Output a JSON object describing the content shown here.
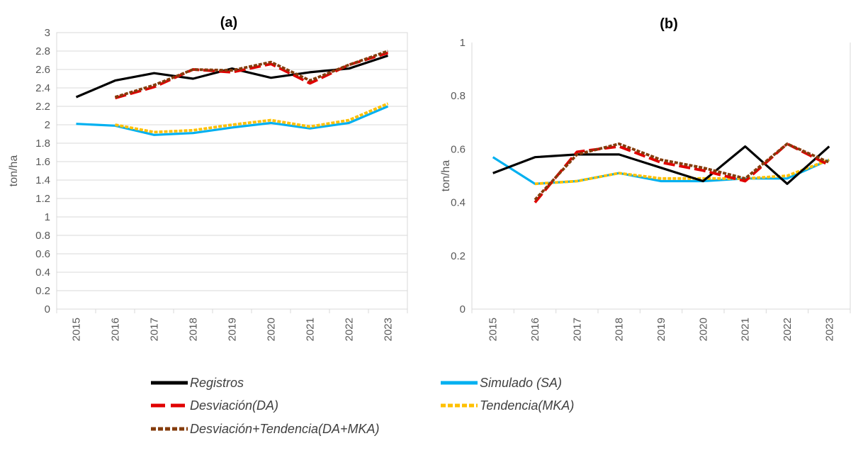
{
  "chart_data": [
    {
      "type": "line",
      "title": "(a)",
      "ylabel": "ton/ha",
      "xlabel": "",
      "categories": [
        "2015",
        "2016",
        "2017",
        "2018",
        "2019",
        "2020",
        "2021",
        "2022",
        "2023"
      ],
      "ylim": [
        0,
        3
      ],
      "yticks": [
        "0",
        "0.2",
        "0.4",
        "0.6",
        "0.8",
        "1",
        "1.2",
        "1.4",
        "1.6",
        "1.8",
        "2",
        "2.2",
        "2.4",
        "2.6",
        "2.8",
        "3"
      ],
      "grid": true,
      "series": [
        {
          "key": "registros",
          "values": [
            2.3,
            2.48,
            2.56,
            2.5,
            2.61,
            2.51,
            2.57,
            2.61,
            2.75
          ]
        },
        {
          "key": "simulado",
          "values": [
            2.01,
            1.99,
            1.89,
            1.91,
            1.97,
            2.02,
            1.96,
            2.02,
            2.2
          ]
        },
        {
          "key": "desviacion",
          "values": [
            null,
            2.29,
            2.41,
            2.6,
            2.57,
            2.66,
            2.45,
            2.65,
            2.78
          ]
        },
        {
          "key": "tendencia",
          "values": [
            null,
            2.0,
            1.92,
            1.94,
            2.0,
            2.05,
            1.98,
            2.05,
            2.23
          ]
        },
        {
          "key": "desv_tend",
          "values": [
            null,
            2.3,
            2.43,
            2.6,
            2.59,
            2.68,
            2.48,
            2.65,
            2.8
          ]
        }
      ]
    },
    {
      "type": "line",
      "title": "(b)",
      "ylabel": "ton/ha",
      "xlabel": "",
      "categories": [
        "2015",
        "2016",
        "2017",
        "2018",
        "2019",
        "2020",
        "2021",
        "2022",
        "2023"
      ],
      "ylim": [
        0,
        1
      ],
      "yticks": [
        "0",
        "0.2",
        "0.4",
        "0.6",
        "0.8",
        "1"
      ],
      "grid": false,
      "series": [
        {
          "key": "registros",
          "values": [
            0.51,
            0.57,
            0.58,
            0.58,
            0.53,
            0.48,
            0.61,
            0.47,
            0.61
          ]
        },
        {
          "key": "simulado",
          "values": [
            0.57,
            0.47,
            0.48,
            0.51,
            0.48,
            0.48,
            0.49,
            0.49,
            0.56
          ]
        },
        {
          "key": "desviacion",
          "values": [
            null,
            0.4,
            0.59,
            0.61,
            0.55,
            0.52,
            0.48,
            0.62,
            0.54
          ]
        },
        {
          "key": "tendencia",
          "values": [
            null,
            0.47,
            0.48,
            0.51,
            0.49,
            0.49,
            0.49,
            0.5,
            0.56
          ]
        },
        {
          "key": "desv_tend",
          "values": [
            null,
            0.41,
            0.58,
            0.62,
            0.56,
            0.53,
            0.49,
            0.62,
            0.55
          ]
        }
      ]
    }
  ],
  "legend": [
    {
      "key": "registros",
      "label": "Registros",
      "color": "#000000",
      "dash": "solid"
    },
    {
      "key": "simulado",
      "label": "Simulado (SA)",
      "color": "#00B0F0",
      "dash": "solid"
    },
    {
      "key": "desviacion",
      "label": "Desviación(DA)",
      "color": "#E00000",
      "dash": "long-dash"
    },
    {
      "key": "tendencia",
      "label": "Tendencia(MKA)",
      "color": "#FFC000",
      "dash": "short-dash"
    },
    {
      "key": "desv_tend",
      "label": "Desviación+Tendencia(DA+MKA)",
      "color": "#843C0C",
      "dash": "short-dash"
    }
  ]
}
